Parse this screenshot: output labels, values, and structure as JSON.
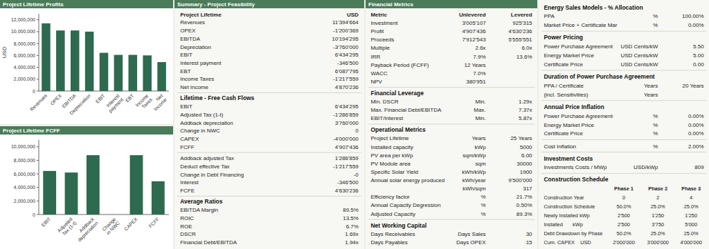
{
  "chart_data": [
    {
      "type": "bar",
      "title": "Project Lifetime Profits",
      "ylabel": "USD",
      "categories": [
        "Revenues",
        "OPEX",
        "EBITDA",
        "Depreciation",
        "EBIT",
        "Interest\npayment",
        "EBT",
        "Income\nTaxes",
        "Net\nIncome"
      ],
      "values": [
        11394664,
        10194295,
        10194295,
        10000000,
        6434295,
        6087795,
        6087795,
        6000000,
        4870236
      ],
      "color": "#2d6a4f",
      "ylim": [
        0,
        13000000
      ],
      "yticks": [
        0,
        {
          "value": 2000000,
          "label": "2,000,000"
        },
        {
          "value": 4000000,
          "label": "4,000,000"
        },
        {
          "value": 6000000,
          "label": "6,000,000"
        },
        {
          "value": 8000000,
          "label": "8,000,000"
        },
        {
          "value": 10000000,
          "label": "10,000,000"
        },
        {
          "value": 12000000,
          "label": "12,000,000"
        }
      ],
      "grid": false
    },
    {
      "type": "bar",
      "title": "Project Lifetime FCFF",
      "categories": [
        "EBIT",
        "Adjusted\nTax (1-t)",
        "Addback\ndepreciation",
        "Change\nin NWC",
        "CAPEX",
        "FCFF"
      ],
      "values": [
        6434295,
        6200000,
        8760000,
        0,
        8760000,
        4907436
      ],
      "color": "#2d6a4f",
      "ylim": [
        0,
        11000000
      ],
      "yticks": [
        0,
        {
          "value": 2000000,
          "label": "2,000,000"
        },
        {
          "value": 4000000,
          "label": "4,000,000"
        },
        {
          "value": 6000000,
          "label": "6,000,000"
        },
        {
          "value": 8000000,
          "label": "8,000,000"
        },
        {
          "value": 10000000,
          "label": "10,000,000"
        }
      ],
      "grid": false
    },
    {
      "type": "table",
      "title": "Summary - Project Feasibility",
      "sections": [
        {
          "header": [
            "Project Lifetime",
            "USD"
          ],
          "rows": [
            [
              "Revenues",
              "11'394'664"
            ],
            [
              "OPEX",
              "-1'200'369"
            ],
            [
              "EBITDA",
              "10'194'295"
            ],
            [
              "Depreciation",
              "-3'760'000"
            ],
            [
              "EBIT",
              "6'434'295"
            ],
            [
              "Interest payment",
              "-346'500"
            ],
            [
              "EBT",
              "6'087'795"
            ],
            [
              "Income Taxes",
              "-1'217'559"
            ],
            [
              "Net Income",
              "4'870'236"
            ]
          ]
        },
        {
          "title": "Lifetime - Free Cash Flows",
          "rows": [
            [
              "EBIT",
              "6'434'295"
            ],
            [
              "Adjusted Tax (1-t)",
              "-1'286'859"
            ],
            [
              "Addback depreciation",
              "3'760'000"
            ],
            [
              "Change in NWC",
              "0"
            ],
            [
              "CAPEX",
              "-4'000'000"
            ],
            [
              "FCFF",
              "4'907'436"
            ]
          ]
        },
        {
          "rows": [
            [
              "Addback adjusted Tax",
              "1'286'859"
            ],
            [
              "Deduct effective Tax",
              "-1'217'559"
            ],
            [
              "Change in Debt Financing",
              "-0"
            ],
            [
              "Interest",
              "-346'500"
            ],
            [
              "FCFE",
              "4'630'236"
            ]
          ]
        },
        {
          "title": "Average Ratios",
          "rows": [
            [
              "EBITDA Margin",
              "89.5%"
            ],
            [
              "ROIC",
              "13.5%"
            ],
            [
              "ROE",
              "6.7%"
            ],
            [
              "DSCR",
              "1.69x"
            ],
            [
              "Financial Debt/EBITDA",
              "1.94x"
            ]
          ]
        }
      ]
    },
    {
      "type": "table",
      "title": "Financial Metrics",
      "sections": [
        {
          "header": [
            "Metric",
            "Unlevered",
            "Levered"
          ],
          "rows": [
            [
              "Investment",
              "3'005'107",
              "925'315"
            ],
            [
              "Profit",
              "4'907'436",
              "4'630'236"
            ],
            [
              "Proceeds",
              "7'912'543",
              "5'555'551"
            ],
            [
              "Multiple",
              "2.6x",
              "6.0x"
            ],
            [
              "IRR",
              "7.9%",
              "13.6%"
            ],
            [
              "Payback Period (FCFF)",
              "12 Years",
              null
            ],
            [
              "WACC",
              "7.0%",
              null
            ],
            [
              "NPV",
              "380'951",
              null
            ]
          ]
        },
        {
          "title": "Financial Leverage",
          "rows": [
            [
              "Min. DSCR",
              "Min.",
              "1.29x"
            ],
            [
              "Max. Financial Debt/EBITDA",
              "Max.",
              "7.37x"
            ],
            [
              "EBIT/Interest",
              "Min.",
              "5.87x"
            ]
          ]
        },
        {
          "title": "Operational Metrics",
          "rows": [
            [
              "Project Lifetime",
              "Years",
              "25 Years"
            ],
            [
              "Installed capacity",
              "kWp",
              "5000"
            ],
            [
              "PV area per kWp",
              "sqm/kWp",
              "6.00"
            ],
            [
              "PV Module area",
              "sqm",
              "30000"
            ],
            [
              "Specific Solar Yield",
              "kWh/kWp",
              "1900"
            ],
            [
              "Annual solar energy produced",
              "kWh/year",
              "9'500'000"
            ],
            [
              null,
              "kWh/sqm",
              "317"
            ],
            [
              "Efficiency factor",
              "%",
              "21.7%"
            ],
            [
              "Annual Capacity Degression",
              "%",
              "0.50%"
            ],
            [
              "Adjusted Capacity",
              "%",
              "89.3%"
            ]
          ]
        },
        {
          "title": "Net Working Capital",
          "rows": [
            [
              "Days Receivables",
              "Days Sales",
              "30"
            ],
            [
              "Days Payables",
              "Days OPEX",
              "15"
            ]
          ]
        }
      ]
    },
    {
      "type": "table",
      "sections": [
        {
          "title": "Energy Sales Models - % Allocation",
          "rows": [
            [
              "PPA",
              "%",
              "100.00%"
            ],
            [
              "Market Price + Certificate Mar",
              "%",
              "0.00%"
            ]
          ]
        },
        {
          "title": "Power Pricing",
          "rows": [
            [
              "Power Purchase Agreement",
              "USD Cents/kW",
              "5.50"
            ],
            [
              "Energy Market Price",
              "USD Cents/kW",
              "5.00"
            ],
            [
              "Certificate Price",
              "USD Cents/kW",
              "0.00"
            ]
          ]
        },
        {
          "title": "Duration of Power Purchase Agreement",
          "rows": [
            [
              "PPA / Certificate",
              "Years",
              "20 Years"
            ],
            [
              "(incl. Sensitivities)",
              "Years",
              null
            ]
          ]
        },
        {
          "title": "Annual Price Inflation",
          "rows": [
            [
              "Power Purchase Agreement",
              "%",
              "0.00%"
            ],
            [
              "Energy Market Price",
              "%",
              "0.00%"
            ],
            [
              "Certificate Price",
              "%",
              "0.00%"
            ]
          ]
        },
        {
          "rows": [
            [
              "Cost Inflation",
              "%",
              "2.00%"
            ]
          ]
        },
        {
          "title": "Investment Costs",
          "rows": [
            [
              "Investments Costs / MWp",
              "USD/kWp",
              "809"
            ]
          ]
        },
        {
          "title": "Construction Schedule",
          "header": [
            null,
            "Phase 1",
            "Phase 2",
            "Phase 3"
          ],
          "rows": [
            [
              "Construction Year",
              "0",
              "2",
              "4"
            ],
            [
              "Construction Schedule",
              "50.0%",
              "25.0%",
              "25.0%"
            ],
            [
              "Newly Installed kWp",
              "2'500",
              "1'250",
              "1'250"
            ],
            [
              "Installed       kWp",
              "2'500",
              "3'750",
              "5'000"
            ],
            [
              "Debt Drawdown by Phase",
              "50.0%",
              "25.0%",
              "25.0%"
            ],
            [
              "Cum. CAPEX    USD",
              "2'000'000",
              "3'000'000",
              "4'000'000"
            ]
          ]
        }
      ]
    }
  ]
}
